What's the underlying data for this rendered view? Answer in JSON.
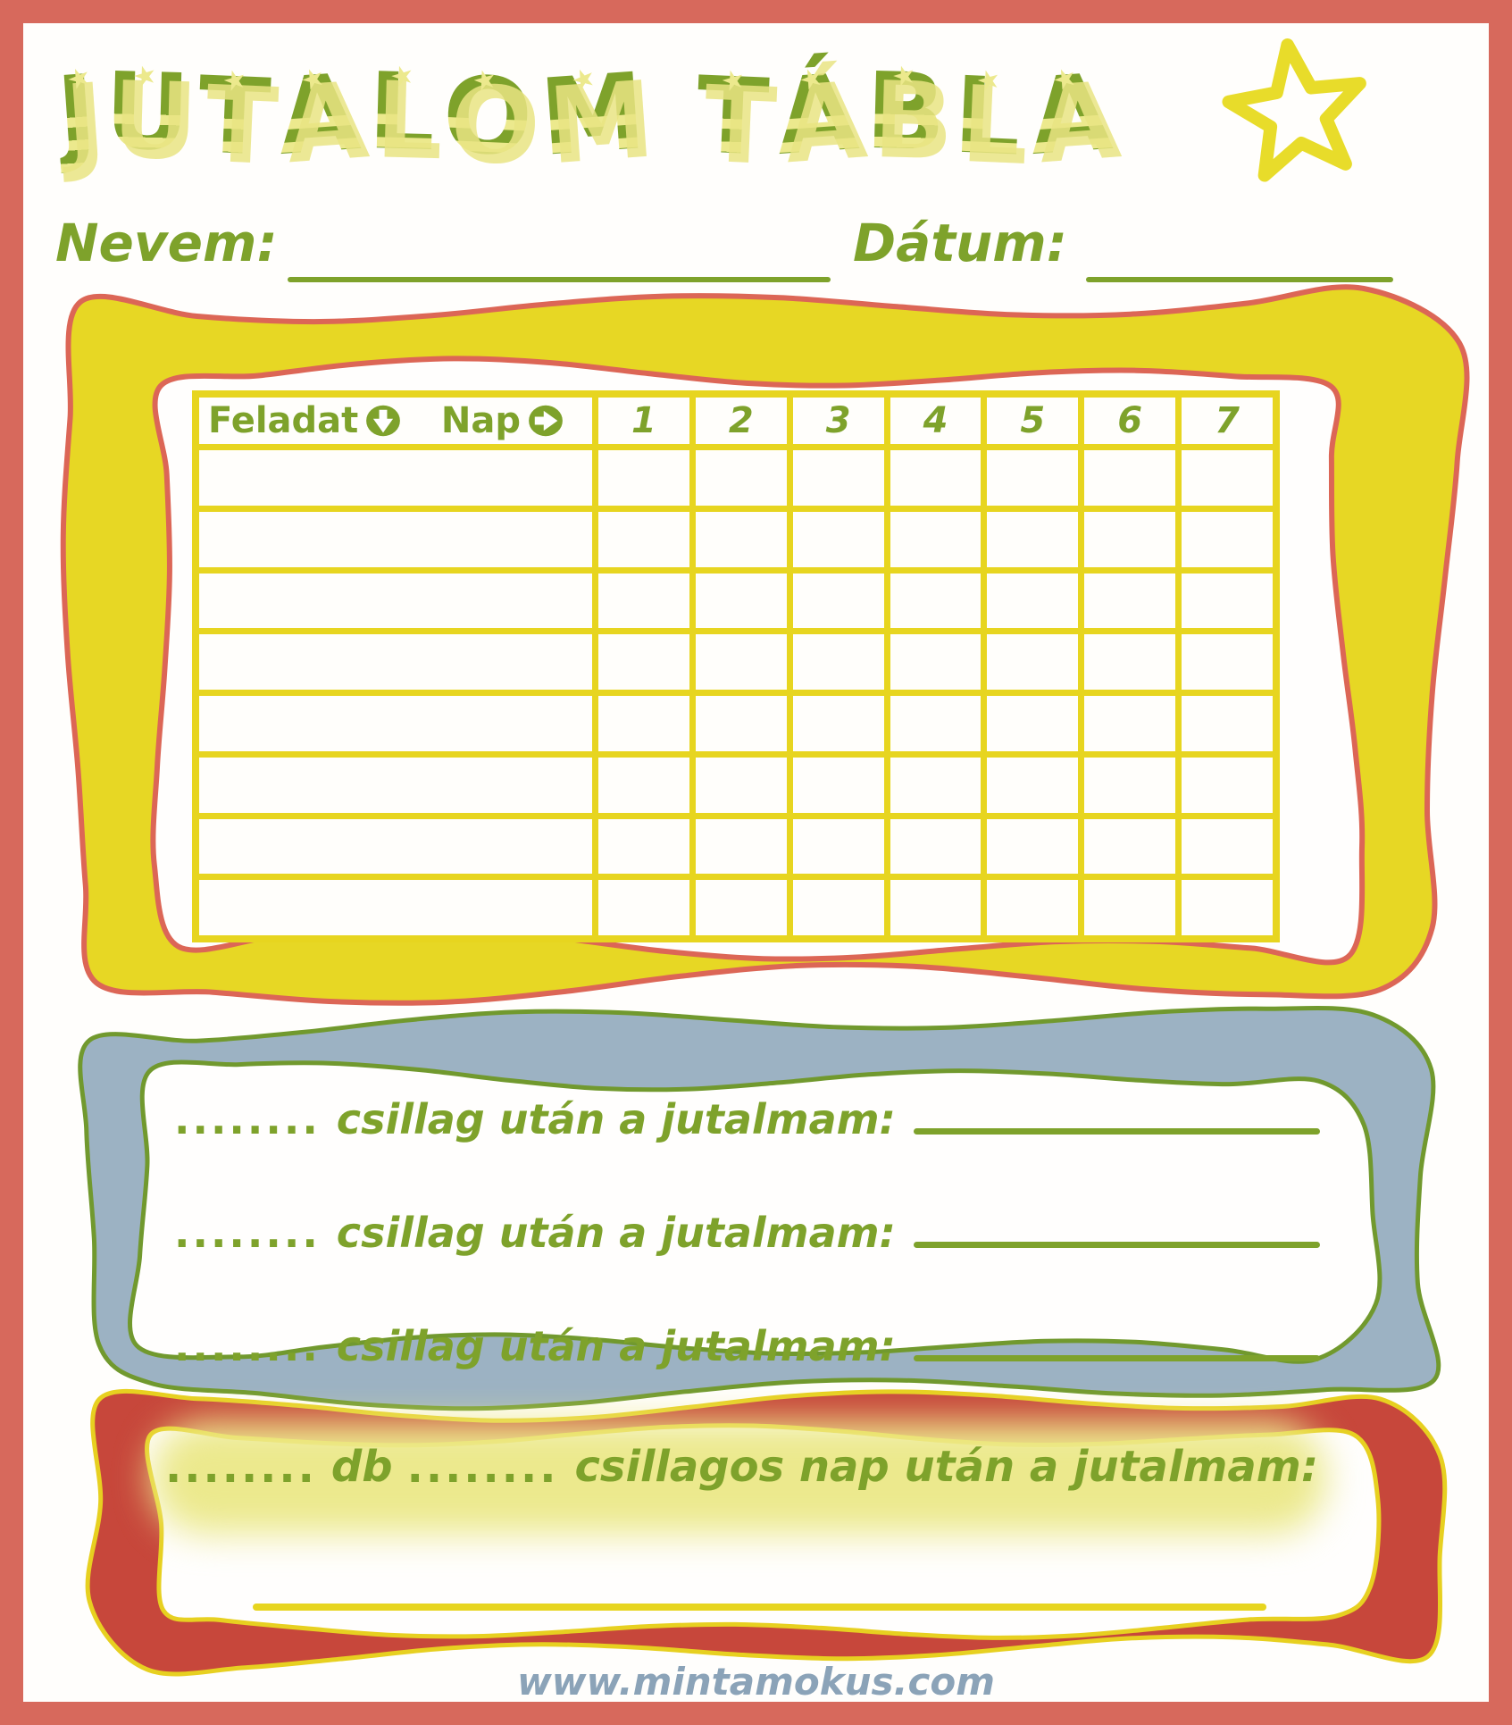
{
  "header": {
    "title": "JUTALOM TÁBLA"
  },
  "name_row": {
    "name_label": "Nevem:",
    "date_label": "Dátum:"
  },
  "table": {
    "task_header": "Feladat",
    "day_header": "Nap",
    "day_numbers": [
      "1",
      "2",
      "3",
      "4",
      "5",
      "6",
      "7"
    ],
    "empty_rows": 8
  },
  "rewards": {
    "lines": [
      {
        "dots": "........",
        "label": "csillag után a jutalmam:"
      },
      {
        "dots": "........",
        "label": "csillag után a jutalmam:"
      },
      {
        "dots": "........",
        "label": "csillag után a jutalmam:"
      }
    ],
    "final": {
      "dots1": "........",
      "unit": "db",
      "dots2": "........",
      "label": "csillagos nap után a jutalmam:"
    }
  },
  "footer": {
    "url": "www.mintamokus.com"
  },
  "icons": {
    "title_star": "star-icon",
    "task_direction": "down-arrow-icon",
    "day_direction": "right-arrow-icon"
  },
  "colors": {
    "border_coral": "#d7695c",
    "grid_yellow": "#e7d51f",
    "frame_yellow": "#e7d724",
    "frame_outline_red": "#dc6656",
    "band_blue": "#9cb2c3",
    "outline_green": "#71992e",
    "band_red": "#c7473b",
    "text_green": "#7ea22b",
    "pale_yellow": "#ece98d",
    "footer_blue": "#8ba3b8",
    "star_yellow": "#e8dc2a"
  }
}
